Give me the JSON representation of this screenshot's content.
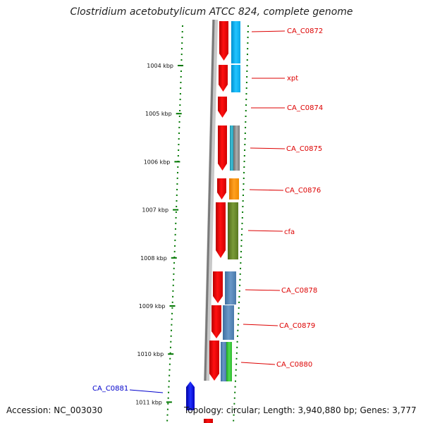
{
  "title": "Clostridium acetobutylicum ATCC 824, complete genome",
  "footer": {
    "accession": "Accession: NC_003030",
    "stats": "Topology: circular; Length: 3,940,880 bp; Genes: 3,777"
  },
  "colors": {
    "forward_gene": "#ff0000",
    "reverse_gene": "#0000ff",
    "highlight_label": "#dd0000",
    "ruler_dots": "#007700"
  },
  "scale": {
    "ticks": [
      "1004 kbp",
      "1005 kbp",
      "1006 kbp",
      "1007 kbp",
      "1008 kbp",
      "1009 kbp",
      "1010 kbp",
      "1011 kbp"
    ]
  },
  "genes": [
    {
      "label": "CA_C0872"
    },
    {
      "label": "xpt"
    },
    {
      "label": "CA_C0874"
    },
    {
      "label": "CA_C0875"
    },
    {
      "label": "CA_C0876"
    },
    {
      "label": "cfa"
    },
    {
      "label": "CA_C0878"
    },
    {
      "label": "CA_C0879"
    },
    {
      "label": "CA_C0880"
    },
    {
      "label": "CA_C0881"
    }
  ]
}
